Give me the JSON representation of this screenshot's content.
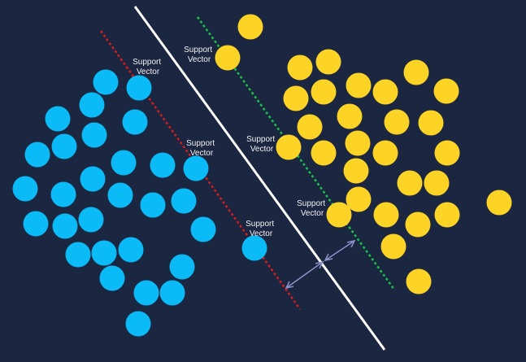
{
  "colors": {
    "background": "#1b2640",
    "class_a": "#0bbbf7",
    "class_b": "#fdd426",
    "hyperplane": "#ffffff",
    "margin_a": "#d81b1b",
    "margin_b": "#19c24a",
    "margin_arrow": "#8b93c9"
  },
  "labels": {
    "sv1": [
      "Support",
      "Vector"
    ],
    "sv2": [
      "Support",
      "Vector"
    ],
    "sv3": [
      "Support",
      "Vector"
    ],
    "sv4": [
      "Support",
      "Vector"
    ],
    "sv5": [
      "Support",
      "Vector"
    ],
    "sv6": [
      "Support",
      "Vector"
    ]
  }
}
